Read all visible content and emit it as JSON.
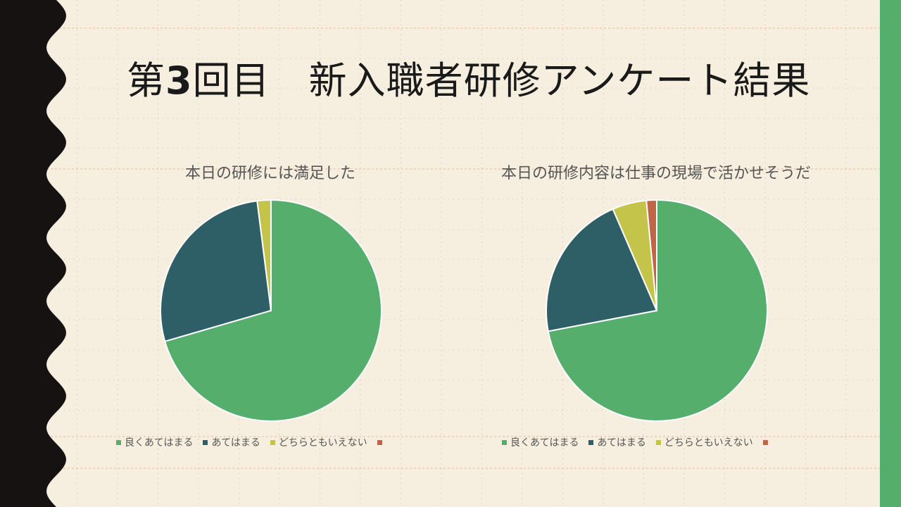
{
  "slide": {
    "title_prefix": "第",
    "title_number": "3",
    "title_rest": "回目　新入職者研修アンケート結果"
  },
  "colors": {
    "background": "#f6efe0",
    "wave": "#151211",
    "accent_bar": "#55ae6c",
    "grid_dot": "#9a9a9a",
    "grid_dash": "#e6a080",
    "slice_1": "#55ae6c",
    "slice_2": "#2f5f66",
    "slice_3": "#c5c44a",
    "slice_4": "#c0654a"
  },
  "chart_data": [
    {
      "type": "pie",
      "title": "本日の研修には満足した",
      "categories": [
        "良くあてはまる",
        "あてはまる",
        "どちらともいえない",
        ""
      ],
      "values": [
        70.5,
        27.5,
        2.0,
        0
      ]
    },
    {
      "type": "pie",
      "title": "本日の研修内容は仕事の現場で活かせそうだ",
      "categories": [
        "良くあてはまる",
        "あてはまる",
        "どちらともいえない",
        ""
      ],
      "values": [
        72,
        21.5,
        5.0,
        1.5
      ]
    }
  ]
}
